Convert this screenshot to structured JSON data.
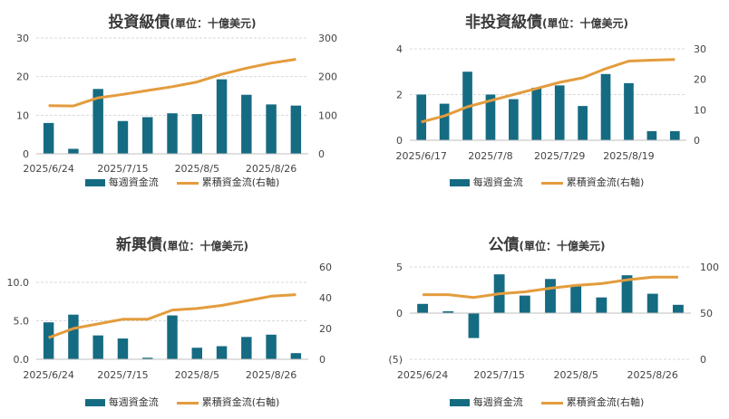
{
  "colors": {
    "bar": "#156b82",
    "line": "#e39c3d",
    "grid": "#d9d9d9",
    "axis": "#bfbfbf",
    "negative": "#c00000"
  },
  "legend": {
    "bar_label": "每週資金流",
    "line_label": "累積資金流(右軸)"
  },
  "chart_data": [
    {
      "type": "bar+line",
      "title": "投資級債",
      "unit": "(單位：十億美元)",
      "categories": [
        "2025/6/24",
        "2025/7/1",
        "2025/7/8",
        "2025/7/15",
        "2025/7/22",
        "2025/7/29",
        "2025/8/5",
        "2025/8/12",
        "2025/8/19",
        "2025/8/26",
        "2025/9/2"
      ],
      "x_tick_labels": [
        "2025/6/24",
        "",
        "",
        "2025/7/15",
        "",
        "",
        "2025/8/5",
        "",
        "",
        "2025/8/26",
        ""
      ],
      "series": [
        {
          "name": "每週資金流",
          "axis": "left",
          "kind": "bar",
          "values": [
            8,
            1.3,
            16.8,
            8.5,
            9.5,
            10.5,
            10.3,
            19.3,
            15.3,
            12.8,
            12.5
          ]
        },
        {
          "name": "累積資金流(右軸)",
          "axis": "right",
          "kind": "line",
          "values": [
            125,
            124,
            145,
            154,
            164,
            174,
            186,
            206,
            222,
            235,
            245
          ]
        }
      ],
      "ylim_left": [
        0,
        30
      ],
      "yticks_left": [
        "0",
        "10",
        "20",
        "30"
      ],
      "ylim_right": [
        0,
        300
      ],
      "yticks_right": [
        "0",
        "100",
        "200",
        "300"
      ],
      "grid": true,
      "legend": "bottom"
    },
    {
      "type": "bar+line",
      "title": "非投資級債",
      "unit": "(單位：十億美元)",
      "categories": [
        "2025/6/17",
        "2025/6/24",
        "2025/7/1",
        "2025/7/8",
        "2025/7/15",
        "2025/7/22",
        "2025/7/29",
        "2025/8/5",
        "2025/8/12",
        "2025/8/19",
        "2025/8/26",
        "2025/9/2"
      ],
      "x_tick_labels": [
        "2025/6/17",
        "",
        "",
        "2025/7/8",
        "",
        "",
        "2025/7/29",
        "",
        "",
        "2025/8/19",
        "",
        ""
      ],
      "series": [
        {
          "name": "每週資金流",
          "axis": "left",
          "kind": "bar",
          "values": [
            2,
            1.6,
            3,
            2,
            1.8,
            2.3,
            2.4,
            1.5,
            2.9,
            2.5,
            0.4,
            0.4
          ]
        },
        {
          "name": "累積資金流(右軸)",
          "axis": "right",
          "kind": "line",
          "values": [
            6,
            8,
            11,
            13,
            15,
            17,
            19,
            20.5,
            23.5,
            26,
            26.3,
            26.5
          ]
        }
      ],
      "ylim_left": [
        0,
        4
      ],
      "yticks_left": [
        "0",
        "2",
        "4"
      ],
      "ylim_right": [
        0,
        30
      ],
      "yticks_right": [
        "0",
        "10",
        "20",
        "30"
      ],
      "grid": true,
      "legend": "bottom"
    },
    {
      "type": "bar+line",
      "title": "新興債",
      "unit": "(單位：十億美元)",
      "categories": [
        "2025/6/24",
        "2025/7/1",
        "2025/7/8",
        "2025/7/15",
        "2025/7/22",
        "2025/7/29",
        "2025/8/5",
        "2025/8/12",
        "2025/8/19",
        "2025/8/26",
        "2025/9/2"
      ],
      "x_tick_labels": [
        "2025/6/24",
        "",
        "",
        "2025/7/15",
        "",
        "",
        "2025/8/5",
        "",
        "",
        "2025/8/26",
        ""
      ],
      "series": [
        {
          "name": "每週資金流",
          "axis": "left",
          "kind": "bar",
          "values": [
            4.8,
            5.8,
            3.1,
            2.7,
            0.2,
            5.7,
            1.5,
            1.7,
            2.9,
            3.2,
            0.8
          ]
        },
        {
          "name": "累積資金流(右軸)",
          "axis": "right",
          "kind": "line",
          "values": [
            14,
            20,
            23,
            26,
            26,
            32,
            33,
            35,
            38,
            41,
            42
          ]
        }
      ],
      "ylim_left": [
        0,
        12
      ],
      "yticks_left": [
        "0.0",
        "5.0",
        "10.0"
      ],
      "ylim_right": [
        0,
        60
      ],
      "yticks_right": [
        "0",
        "20",
        "40",
        "60"
      ],
      "grid": true,
      "legend": "bottom"
    },
    {
      "type": "bar+line",
      "title": "公債",
      "unit": "(單位：十億美元)",
      "categories": [
        "2025/6/24",
        "2025/7/1",
        "2025/7/8",
        "2025/7/15",
        "2025/7/22",
        "2025/7/29",
        "2025/8/5",
        "2025/8/12",
        "2025/8/19",
        "2025/8/26",
        "2025/9/2"
      ],
      "x_tick_labels": [
        "2025/6/24",
        "",
        "",
        "2025/7/15",
        "",
        "",
        "2025/8/5",
        "",
        "",
        "2025/8/26",
        ""
      ],
      "series": [
        {
          "name": "每週資金流",
          "axis": "left",
          "kind": "bar",
          "values": [
            1,
            0.2,
            -2.7,
            4.2,
            1.9,
            3.7,
            2.9,
            1.7,
            4.1,
            2.1,
            0.9
          ]
        },
        {
          "name": "累積資金流(右軸)",
          "axis": "right",
          "kind": "line",
          "values": [
            70,
            70,
            67,
            71,
            73,
            77,
            80,
            82,
            86,
            89,
            89
          ]
        }
      ],
      "ylim_left": [
        -5,
        5
      ],
      "yticks_left": [
        "(5)",
        "0",
        "5"
      ],
      "ylim_right": [
        0,
        100
      ],
      "yticks_right": [
        "0",
        "50",
        "100"
      ],
      "grid": true,
      "legend": "bottom"
    }
  ]
}
